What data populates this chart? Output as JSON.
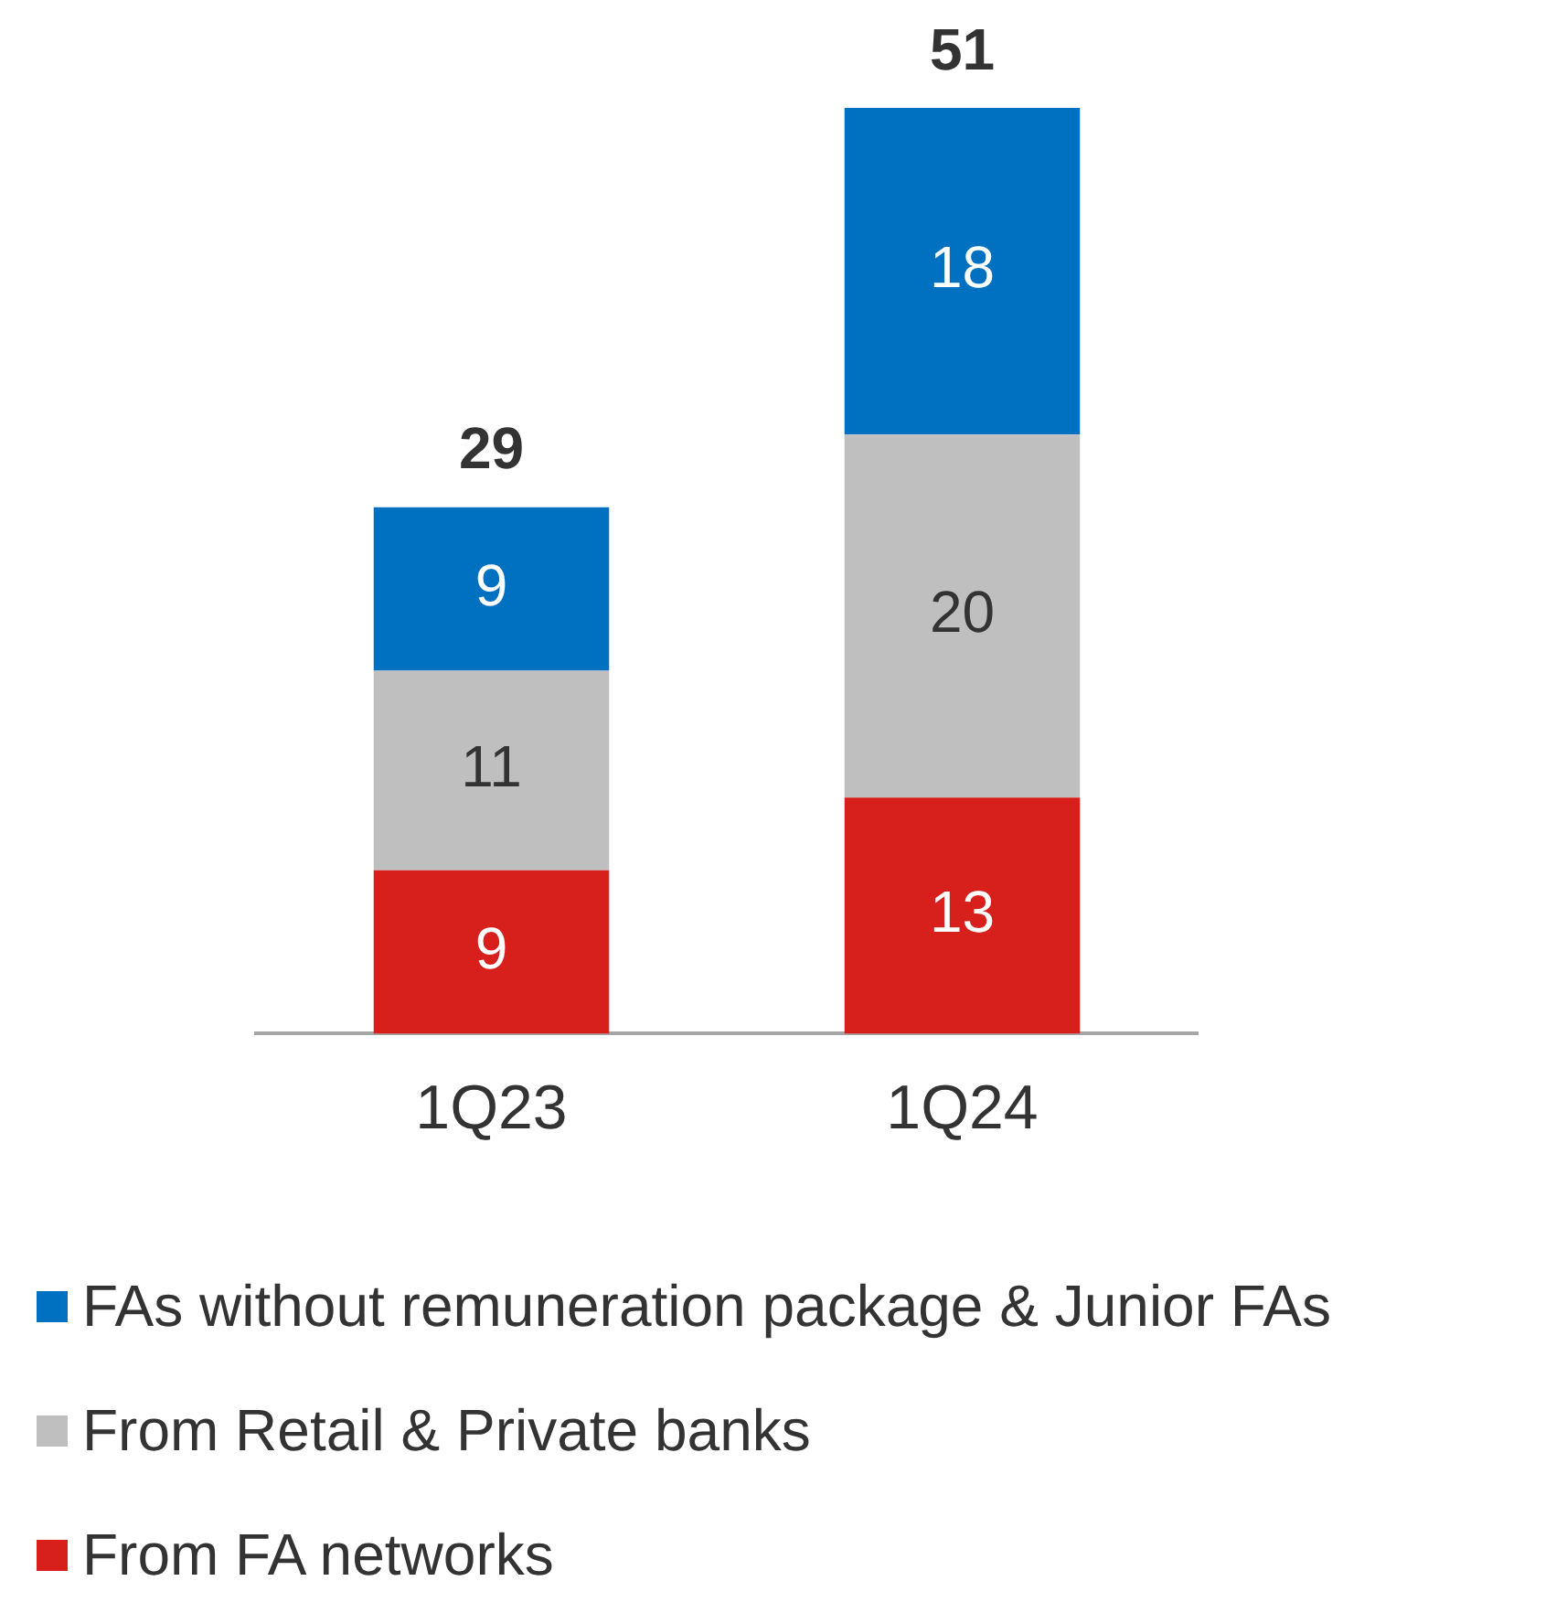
{
  "chart_data": {
    "type": "bar",
    "stacked": true,
    "categories": [
      "1Q23",
      "1Q24"
    ],
    "series": [
      {
        "name": "From FA networks",
        "color": "#d71f1b",
        "values": [
          9,
          13
        ]
      },
      {
        "name": "From Retail & Private banks",
        "color": "#bfbfbf",
        "values": [
          11,
          20
        ]
      },
      {
        "name": "FAs without remuneration package & Junior FAs",
        "color": "#0070c0",
        "values": [
          9,
          18
        ]
      }
    ],
    "data_labels": true,
    "totals": [
      "29",
      "51"
    ],
    "legend": "bottom",
    "grid": false
  }
}
